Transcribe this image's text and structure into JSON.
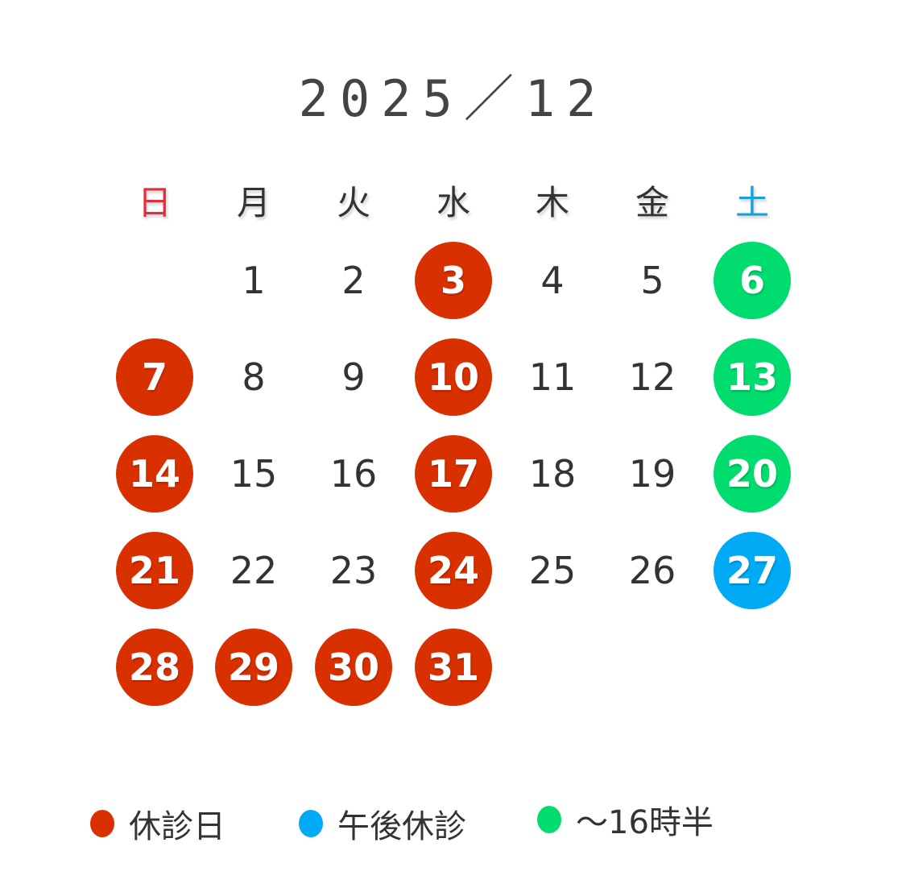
{
  "title": "2025／12",
  "colors": {
    "closed": "#d93000",
    "afternoon_closed": "#00aaf5",
    "until_1630": "#00dc6e",
    "sunday": "#e0303c",
    "saturday": "#1aa0d8",
    "text": "#333333"
  },
  "weekdays": [
    "日",
    "月",
    "火",
    "水",
    "木",
    "金",
    "土"
  ],
  "first_weekday_index": 1,
  "days": [
    {
      "d": "1",
      "s": ""
    },
    {
      "d": "2",
      "s": ""
    },
    {
      "d": "3",
      "s": "closed"
    },
    {
      "d": "4",
      "s": ""
    },
    {
      "d": "5",
      "s": ""
    },
    {
      "d": "6",
      "s": "until_1630"
    },
    {
      "d": "7",
      "s": "closed"
    },
    {
      "d": "8",
      "s": ""
    },
    {
      "d": "9",
      "s": ""
    },
    {
      "d": "10",
      "s": "closed"
    },
    {
      "d": "11",
      "s": ""
    },
    {
      "d": "12",
      "s": ""
    },
    {
      "d": "13",
      "s": "until_1630"
    },
    {
      "d": "14",
      "s": "closed"
    },
    {
      "d": "15",
      "s": ""
    },
    {
      "d": "16",
      "s": ""
    },
    {
      "d": "17",
      "s": "closed"
    },
    {
      "d": "18",
      "s": ""
    },
    {
      "d": "19",
      "s": ""
    },
    {
      "d": "20",
      "s": "until_1630"
    },
    {
      "d": "21",
      "s": "closed"
    },
    {
      "d": "22",
      "s": ""
    },
    {
      "d": "23",
      "s": ""
    },
    {
      "d": "24",
      "s": "closed"
    },
    {
      "d": "25",
      "s": ""
    },
    {
      "d": "26",
      "s": ""
    },
    {
      "d": "27",
      "s": "afternoon_closed"
    },
    {
      "d": "28",
      "s": "closed"
    },
    {
      "d": "29",
      "s": "closed"
    },
    {
      "d": "30",
      "s": "closed"
    },
    {
      "d": "31",
      "s": "closed"
    }
  ],
  "legend": [
    {
      "key": "closed",
      "label": "休診日"
    },
    {
      "key": "afternoon_closed",
      "label": "午後休診"
    },
    {
      "key": "until_1630",
      "label": "〜16時半"
    }
  ]
}
